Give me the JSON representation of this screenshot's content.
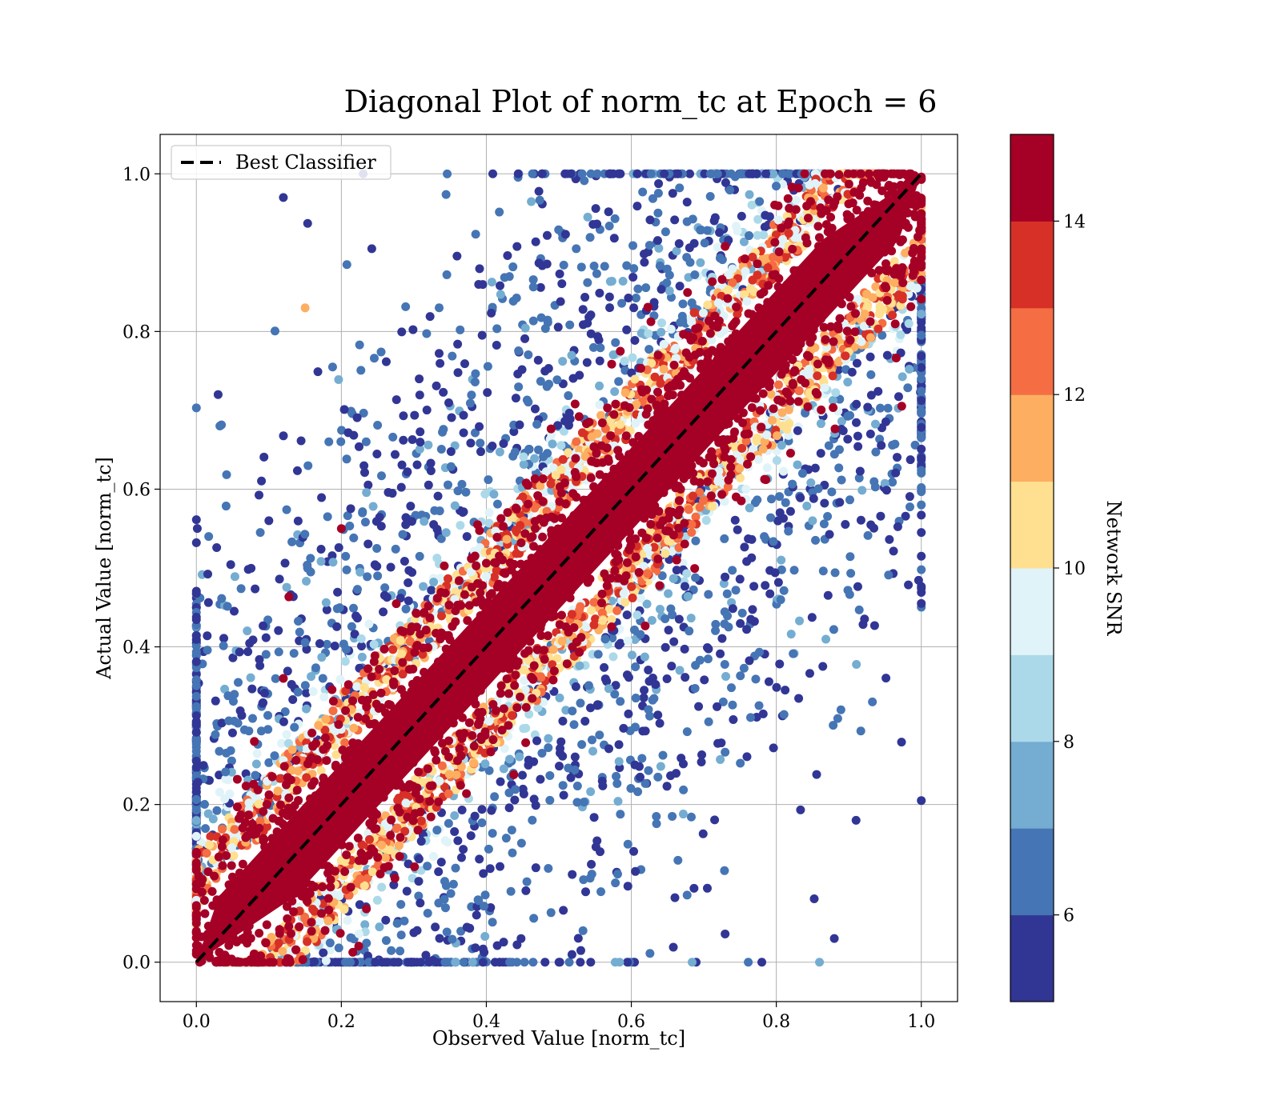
{
  "chart_data": {
    "type": "scatter",
    "title": "Diagonal Plot of norm_tc at Epoch = 6",
    "xlabel": "Observed Value [norm_tc]",
    "ylabel": "Actual Value [norm_tc]",
    "xlim": [
      -0.05,
      1.05
    ],
    "ylim": [
      -0.05,
      1.05
    ],
    "x_ticks": [
      "0.0",
      "0.2",
      "0.4",
      "0.6",
      "0.8",
      "1.0"
    ],
    "y_ticks": [
      "0.0",
      "0.2",
      "0.4",
      "0.6",
      "0.8",
      "1.0"
    ],
    "x_tick_values": [
      0,
      0.2,
      0.4,
      0.6,
      0.8,
      1.0
    ],
    "y_tick_values": [
      0,
      0.2,
      0.4,
      0.6,
      0.8,
      1.0
    ],
    "grid": true,
    "legend": {
      "position": "top-left",
      "entries": [
        "Best Classifier"
      ]
    },
    "reference_line": {
      "label": "Best Classifier",
      "x": [
        0,
        1
      ],
      "y": [
        0,
        1
      ],
      "style": "dashed",
      "color": "#000000"
    },
    "colorbar": {
      "label": "Network SNR",
      "range": [
        5,
        15
      ],
      "ticks": [
        "6",
        "8",
        "10",
        "12",
        "14"
      ],
      "tick_values": [
        6,
        8,
        10,
        12,
        14
      ],
      "colors": [
        "#313695",
        "#4575b4",
        "#74add1",
        "#abd9e9",
        "#e0f3f8",
        "#fee090",
        "#fdae61",
        "#f46d43",
        "#d73027",
        "#a50026"
      ]
    },
    "sample_points": [
      {
        "x": 0.03,
        "y": 0.72,
        "snr": 5.5
      },
      {
        "x": 0.1,
        "y": 0.56,
        "snr": 5.5
      },
      {
        "x": 0.12,
        "y": 0.97,
        "snr": 5.5
      },
      {
        "x": 0.15,
        "y": 0.83,
        "snr": 11.5
      },
      {
        "x": 0.2,
        "y": 0.55,
        "snr": 14.5
      },
      {
        "x": 0.12,
        "y": 0.36,
        "snr": 14.5
      },
      {
        "x": 0.08,
        "y": 0.28,
        "snr": 14.5
      },
      {
        "x": 0.93,
        "y": 0.67,
        "snr": 5.5
      },
      {
        "x": 0.91,
        "y": 0.18,
        "snr": 5.5
      },
      {
        "x": 0.88,
        "y": 0.03,
        "snr": 5.5
      },
      {
        "x": 0.78,
        "y": 0.0,
        "snr": 5.5
      },
      {
        "x": 0.85,
        "y": 0.56,
        "snr": 7.5
      }
    ]
  }
}
